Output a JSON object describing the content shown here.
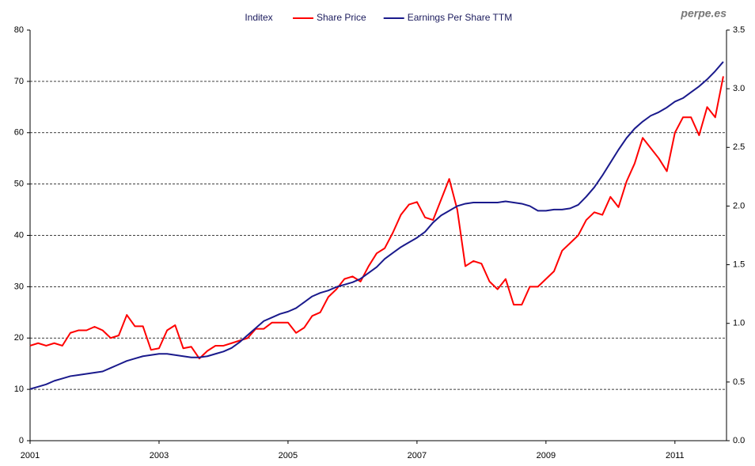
{
  "chart_data": {
    "type": "line",
    "legend_title": "Inditex",
    "watermark": "perpe.es",
    "x": [
      2001,
      2001.125,
      2001.25,
      2001.375,
      2001.5,
      2001.625,
      2001.75,
      2001.875,
      2002,
      2002.125,
      2002.25,
      2002.375,
      2002.5,
      2002.625,
      2002.75,
      2002.875,
      2003,
      2003.125,
      2003.25,
      2003.375,
      2003.5,
      2003.625,
      2003.75,
      2003.875,
      2004,
      2004.125,
      2004.25,
      2004.375,
      2004.5,
      2004.625,
      2004.75,
      2004.875,
      2005,
      2005.125,
      2005.25,
      2005.375,
      2005.5,
      2005.625,
      2005.75,
      2005.875,
      2006,
      2006.125,
      2006.25,
      2006.375,
      2006.5,
      2006.625,
      2006.75,
      2006.875,
      2007,
      2007.125,
      2007.25,
      2007.375,
      2007.5,
      2007.625,
      2007.75,
      2007.875,
      2008,
      2008.125,
      2008.25,
      2008.375,
      2008.5,
      2008.625,
      2008.75,
      2008.875,
      2009,
      2009.125,
      2009.25,
      2009.375,
      2009.5,
      2009.625,
      2009.75,
      2009.875,
      2010,
      2010.125,
      2010.25,
      2010.375,
      2010.5,
      2010.625,
      2010.75,
      2010.875,
      2011,
      2011.125,
      2011.25,
      2011.375,
      2011.5,
      2011.625,
      2011.75
    ],
    "series": [
      {
        "name": "Share Price",
        "color": "#ff0000",
        "values": [
          18.5,
          19,
          18.5,
          19,
          18.5,
          21,
          21.5,
          21.5,
          22.2,
          21.5,
          20,
          20.5,
          24.5,
          22.3,
          22.3,
          17.7,
          18,
          21.5,
          22.5,
          18,
          18.3,
          16,
          17.5,
          18.5,
          18.5,
          19,
          19.5,
          20,
          21.8,
          21.8,
          23,
          23,
          23,
          21,
          22,
          24.3,
          25,
          28,
          29.5,
          31.5,
          32,
          31,
          34,
          36.5,
          37.5,
          40.5,
          44,
          46,
          46.5,
          43.5,
          43,
          47,
          51,
          45,
          34,
          35,
          34.5,
          31,
          29.5,
          31.5,
          26.5,
          26.5,
          30,
          30,
          31.5,
          33,
          37,
          38.5,
          40,
          43,
          44.5,
          44,
          47.5,
          45.5,
          50.5,
          54,
          59,
          57,
          55,
          52.5,
          60,
          63,
          63,
          59.5,
          65,
          63,
          71
        ]
      },
      {
        "name": "Earnings Per Share TTM",
        "color": "#1a1a8c",
        "axis": "y2",
        "values": [
          0.44,
          0.46,
          0.48,
          0.51,
          0.53,
          0.55,
          0.56,
          0.57,
          0.58,
          0.59,
          0.62,
          0.65,
          0.68,
          0.7,
          0.72,
          0.73,
          0.74,
          0.74,
          0.73,
          0.72,
          0.71,
          0.71,
          0.72,
          0.74,
          0.76,
          0.79,
          0.84,
          0.9,
          0.96,
          1.02,
          1.05,
          1.08,
          1.1,
          1.13,
          1.18,
          1.23,
          1.26,
          1.28,
          1.31,
          1.33,
          1.35,
          1.38,
          1.43,
          1.48,
          1.55,
          1.6,
          1.65,
          1.69,
          1.73,
          1.78,
          1.86,
          1.92,
          1.96,
          2.0,
          2.02,
          2.03,
          2.03,
          2.03,
          2.03,
          2.04,
          2.03,
          2.02,
          2.0,
          1.96,
          1.96,
          1.97,
          1.97,
          1.98,
          2.01,
          2.08,
          2.16,
          2.26,
          2.37,
          2.48,
          2.58,
          2.66,
          2.72,
          2.77,
          2.8,
          2.84,
          2.89,
          2.92,
          2.97,
          3.02,
          3.08,
          3.15,
          3.23
        ]
      }
    ],
    "xlim": [
      2001,
      2011.8
    ],
    "xticks": [
      2001,
      2003,
      2005,
      2007,
      2009,
      2011
    ],
    "ylim": [
      0,
      80
    ],
    "yticks": [
      0,
      10,
      20,
      30,
      40,
      50,
      60,
      70,
      80
    ],
    "y2lim": [
      0,
      3.5
    ],
    "y2ticks": [
      {
        "value": 0,
        "label": "0.0"
      },
      0.5,
      {
        "value": 1,
        "label": "1.0"
      },
      1.5,
      {
        "value": 2,
        "label": "2.0"
      },
      2.5,
      {
        "value": 3,
        "label": "3.0"
      },
      3.5
    ],
    "grid": true
  }
}
